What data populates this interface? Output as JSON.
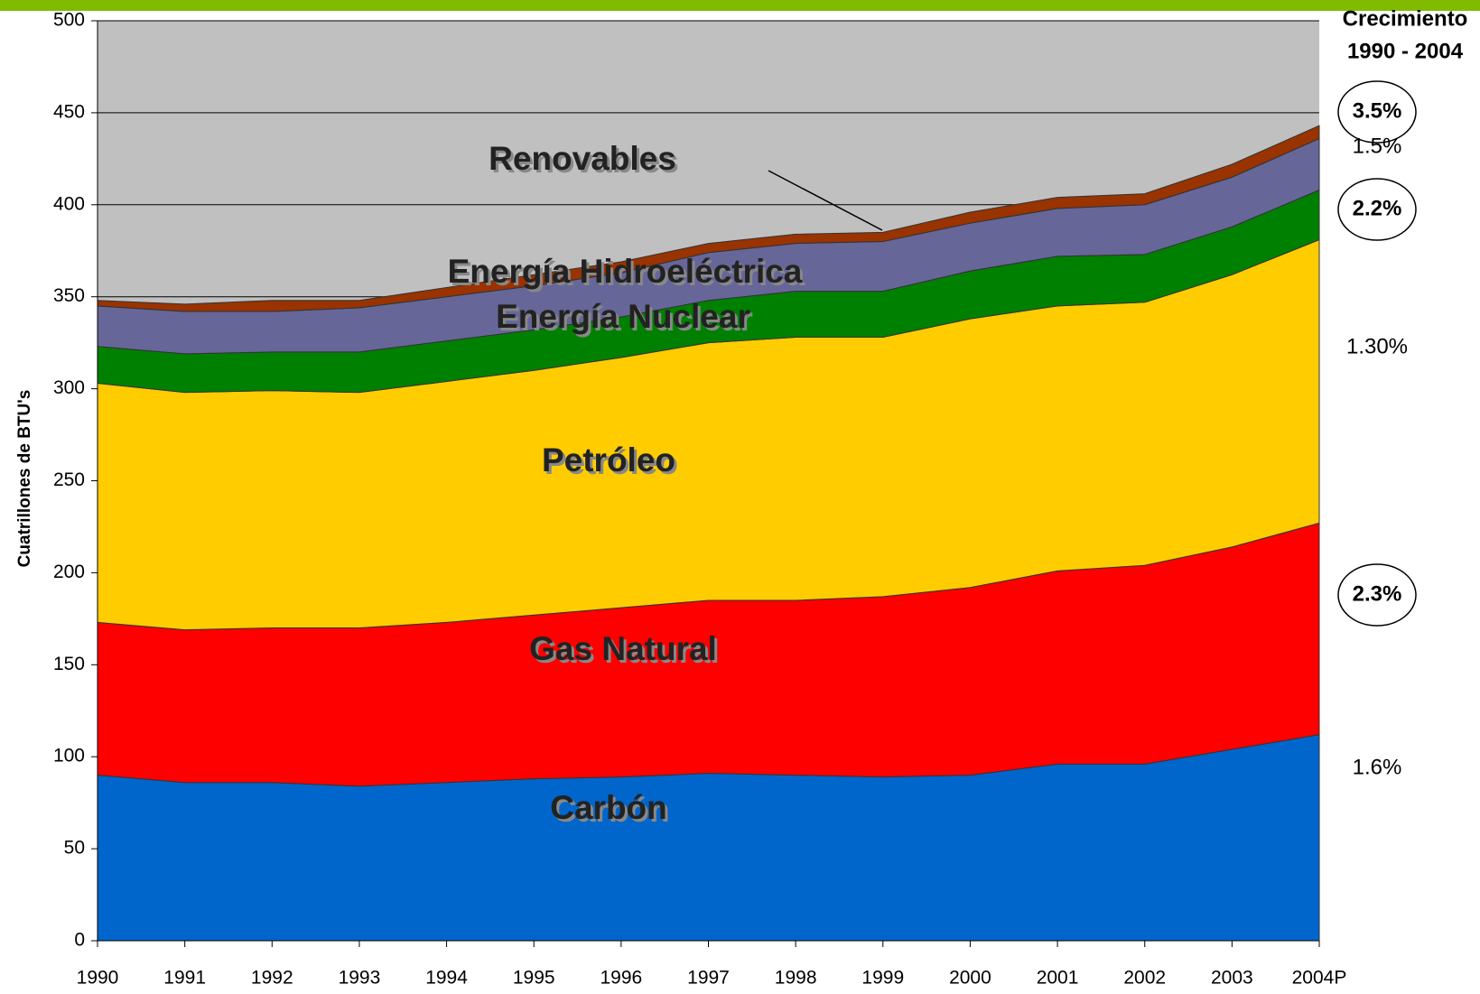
{
  "chart_data": {
    "type": "stacked-area",
    "y_label": "Cuatrillones de BTU's",
    "categories": [
      "1990",
      "1991",
      "1992",
      "1993",
      "1994",
      "1995",
      "1996",
      "1997",
      "1998",
      "1999",
      "2000",
      "2001",
      "2002",
      "2003",
      "2004P"
    ],
    "series": [
      {
        "name": "Carbón",
        "color": "#0066cc",
        "values": [
          90,
          86,
          86,
          84,
          86,
          88,
          89,
          91,
          90,
          89,
          90,
          96,
          96,
          104,
          112
        ]
      },
      {
        "name": "Gas Natural",
        "color": "#ff0000",
        "values": [
          83,
          83,
          84,
          86,
          87,
          89,
          92,
          94,
          95,
          98,
          102,
          105,
          108,
          110,
          115
        ]
      },
      {
        "name": "Petróleo",
        "color": "#ffcc00",
        "values": [
          130,
          129,
          129,
          128,
          131,
          133,
          136,
          140,
          143,
          141,
          146,
          144,
          143,
          148,
          154
        ]
      },
      {
        "name": "Energía Nuclear",
        "color": "#008000",
        "values": [
          20,
          21,
          21,
          22,
          22,
          22,
          22,
          23,
          25,
          25,
          26,
          27,
          26,
          26,
          27
        ]
      },
      {
        "name": "Energía Hidroeléctrica",
        "color": "#666699",
        "values": [
          22,
          23,
          22,
          24,
          24,
          24,
          24,
          26,
          26,
          27,
          26,
          26,
          27,
          27,
          28
        ]
      },
      {
        "name": "Renovables",
        "color": "#993300",
        "values": [
          3,
          4,
          6,
          4,
          5,
          6,
          6,
          5,
          5,
          5,
          6,
          6,
          6,
          7,
          7
        ]
      }
    ],
    "ylim": [
      0,
      500
    ],
    "yticks": [
      0,
      50,
      100,
      150,
      200,
      250,
      300,
      350,
      400,
      450,
      500
    ],
    "grid": true,
    "growth_title": [
      "Crecimiento",
      "1990 - 2004"
    ],
    "growth": [
      {
        "label": "3.5%",
        "circled": true
      },
      {
        "label": "1.5%",
        "circled": false
      },
      {
        "label": "2.2%",
        "circled": true
      },
      {
        "label": "1.30%",
        "circled": false
      },
      {
        "label": "2.3%",
        "circled": true
      },
      {
        "label": "1.6%",
        "circled": false
      }
    ]
  }
}
